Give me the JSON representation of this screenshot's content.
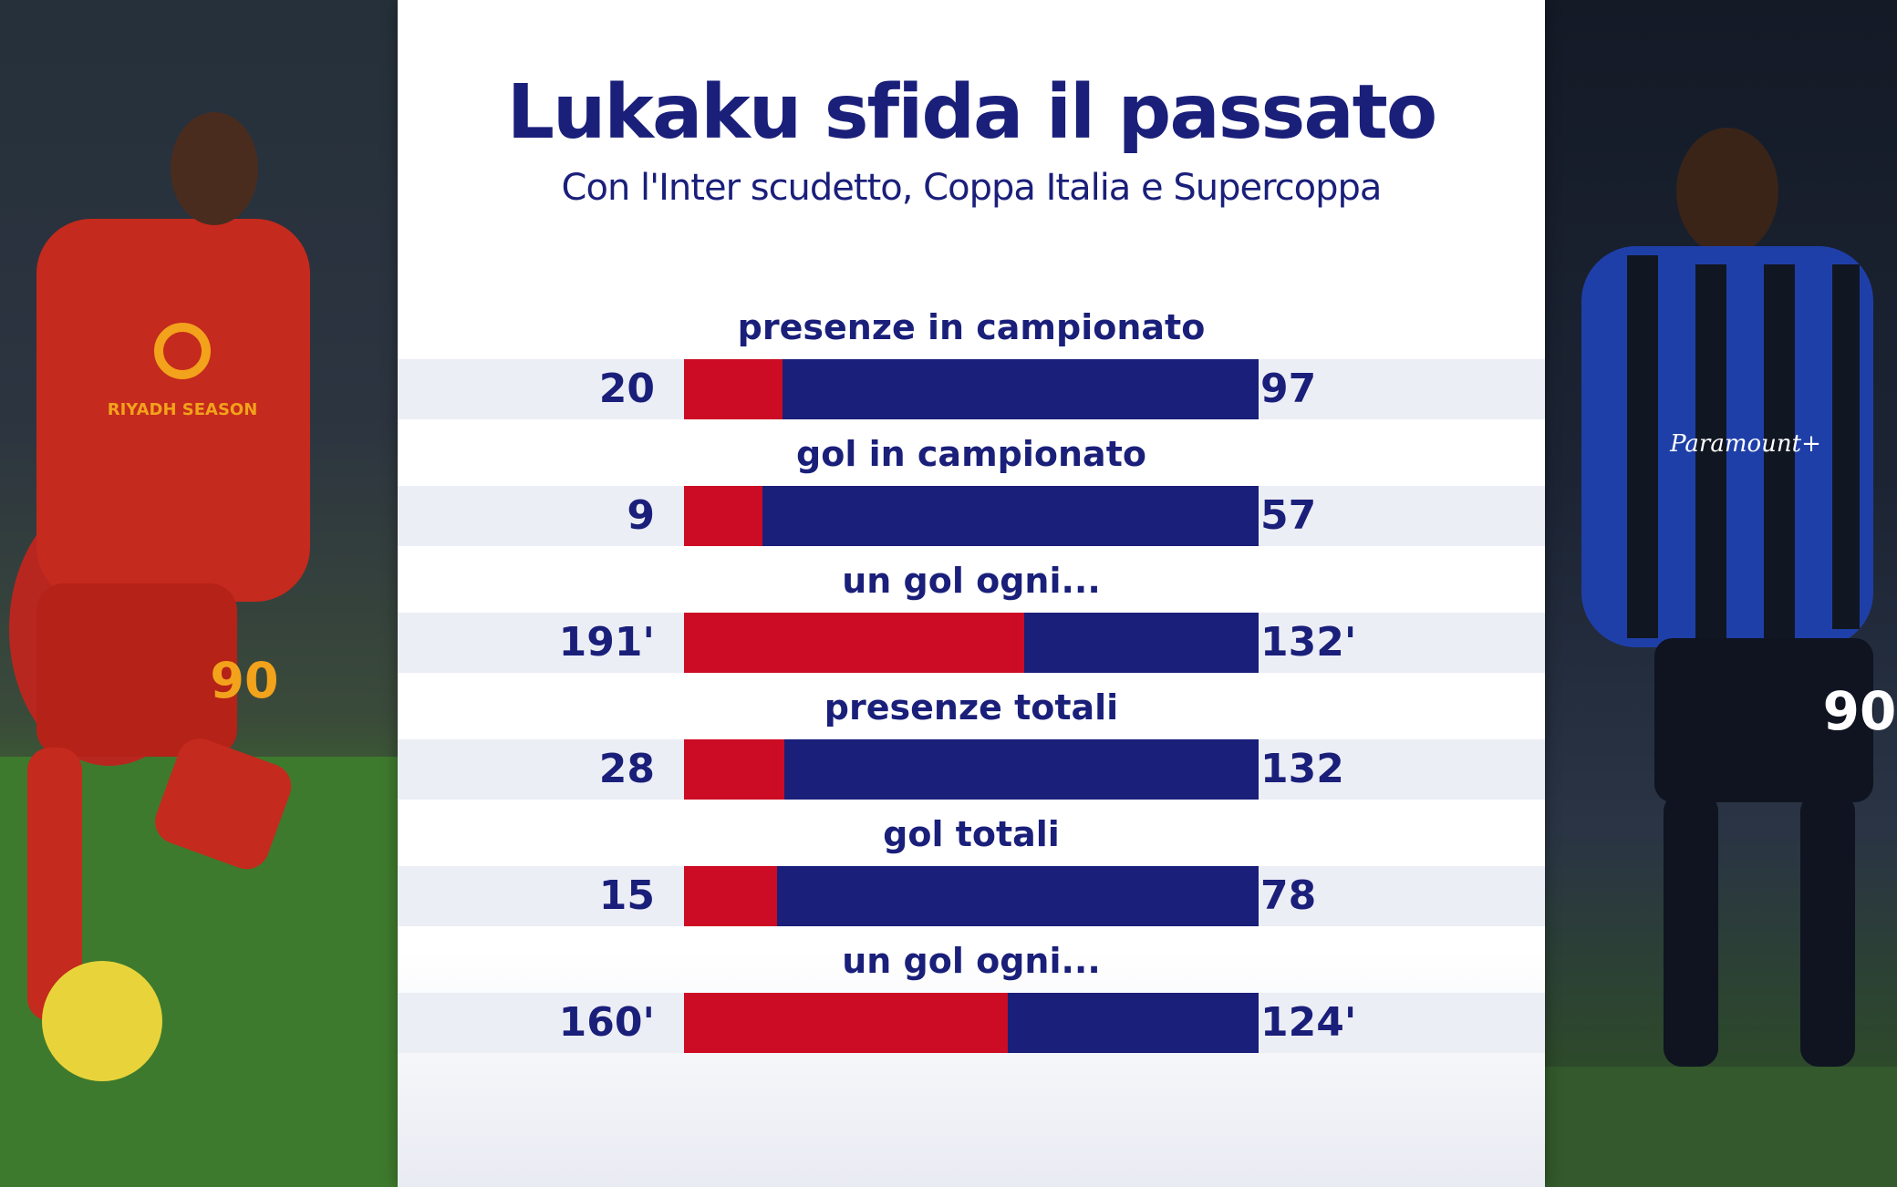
{
  "header": {
    "title": "Lukaku sfida il passato",
    "subtitle": "Con l'Inter scudetto, Coppa Italia e Supercoppa"
  },
  "colors": {
    "left_team": "#cc0c24",
    "right_team": "#1a1f7a",
    "text": "#1a1f7a"
  },
  "photos": {
    "left": {
      "icon": "player-photo-roma",
      "shirt_text": "RIYADH SEASON",
      "number": "90"
    },
    "right": {
      "icon": "player-photo-inter",
      "shirt_text": "Paramount+",
      "number": "90"
    }
  },
  "chart_data": {
    "type": "bar",
    "orientation": "horizontal-split",
    "title": "Lukaku sfida il passato",
    "subtitle": "Con l'Inter scudetto, Coppa Italia e Supercoppa",
    "categories": [
      "presenze in campionato",
      "gol in campionato",
      "un gol ogni...",
      "presenze totali",
      "gol totali",
      "un gol ogni..."
    ],
    "series": [
      {
        "values": [
          20,
          9,
          191,
          28,
          15,
          160
        ],
        "labels": [
          "20",
          "9",
          "191'",
          "28",
          "15",
          "160'"
        ],
        "color": "#cc0c24"
      },
      {
        "values": [
          97,
          57,
          132,
          132,
          78,
          124
        ],
        "labels": [
          "97",
          "57",
          "132'",
          "132",
          "78",
          "124'"
        ],
        "color": "#1a1f7a"
      }
    ]
  }
}
